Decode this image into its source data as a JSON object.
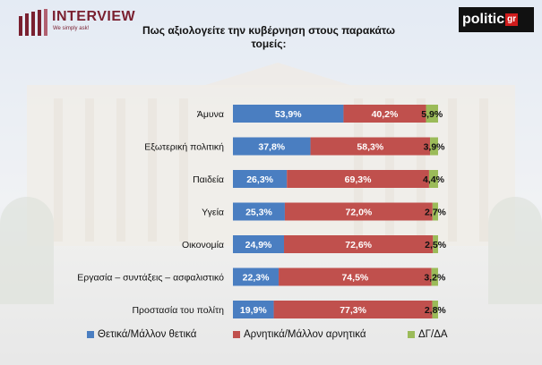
{
  "header": {
    "brand": "INTERVIEW",
    "tagline": "We simply ask!",
    "politic_logo": "politic",
    "politic_suffix": "gr",
    "title_line1": "Πως αξιολογείτε την κυβέρνηση στους παρακάτω",
    "title_line2": "τομείς:"
  },
  "colors": {
    "positive": "#4a7ec1",
    "negative": "#c0504d",
    "dk": "#9bbb59"
  },
  "chart_data": {
    "type": "bar",
    "orientation": "horizontal",
    "stacked": true,
    "title": "Πως αξιολογείτε την κυβέρνηση στους παρακάτω τομείς:",
    "unit": "%",
    "categories": [
      "Άμυνα",
      "Εξωτερική πολιτική",
      "Παιδεία",
      "Υγεία",
      "Οικονομία",
      "Εργασία – συντάξεις – ασφαλιστικό",
      "Προστασία του πολίτη"
    ],
    "series": [
      {
        "name": "Θετικά/Μάλλον θετικά",
        "color": "#4a7ec1",
        "values": [
          53.9,
          37.8,
          26.3,
          25.3,
          24.9,
          22.3,
          19.9
        ],
        "labels": [
          "53,9%",
          "37,8%",
          "26,3%",
          "25,3%",
          "24,9%",
          "22,3%",
          "19,9%"
        ]
      },
      {
        "name": "Αρνητικά/Μάλλον αρνητικά",
        "color": "#c0504d",
        "values": [
          40.2,
          58.3,
          69.3,
          72.0,
          72.6,
          74.5,
          77.3
        ],
        "labels": [
          "40,2%",
          "58,3%",
          "69,3%",
          "72,0%",
          "72,6%",
          "74,5%",
          "77,3%"
        ]
      },
      {
        "name": "ΔΓ/ΔΑ",
        "color": "#9bbb59",
        "values": [
          5.9,
          3.9,
          4.4,
          2.7,
          2.5,
          3.2,
          2.8
        ],
        "labels": [
          "5,9%",
          "3,9%",
          "4,4%",
          "2,7%",
          "2,5%",
          "3,2%",
          "2,8%"
        ]
      }
    ],
    "xlim": [
      0,
      100
    ],
    "legend_position": "bottom"
  }
}
